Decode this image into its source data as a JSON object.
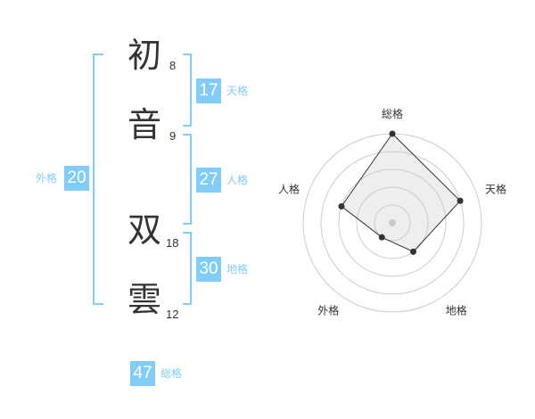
{
  "name": {
    "chars": [
      {
        "char": "初",
        "strokes": "8"
      },
      {
        "char": "音",
        "strokes": "9"
      },
      {
        "char": "双",
        "strokes": "18"
      },
      {
        "char": "雲",
        "strokes": "12"
      }
    ]
  },
  "kaku": {
    "tenkaku": {
      "label": "天格",
      "value": "17"
    },
    "jinkaku": {
      "label": "人格",
      "value": "27"
    },
    "chikaku": {
      "label": "地格",
      "value": "30"
    },
    "gaikaku": {
      "label": "外格",
      "value": "20"
    },
    "soukaku": {
      "label": "総格",
      "value": "47"
    }
  },
  "colors": {
    "accent": "#82cdf7",
    "text": "#333333"
  },
  "chart_data": {
    "type": "radar",
    "categories": [
      "総格",
      "天格",
      "地格",
      "外格",
      "人格"
    ],
    "values": [
      5,
      4,
      2,
      1,
      3
    ],
    "range": [
      0,
      5
    ],
    "grid": true
  }
}
